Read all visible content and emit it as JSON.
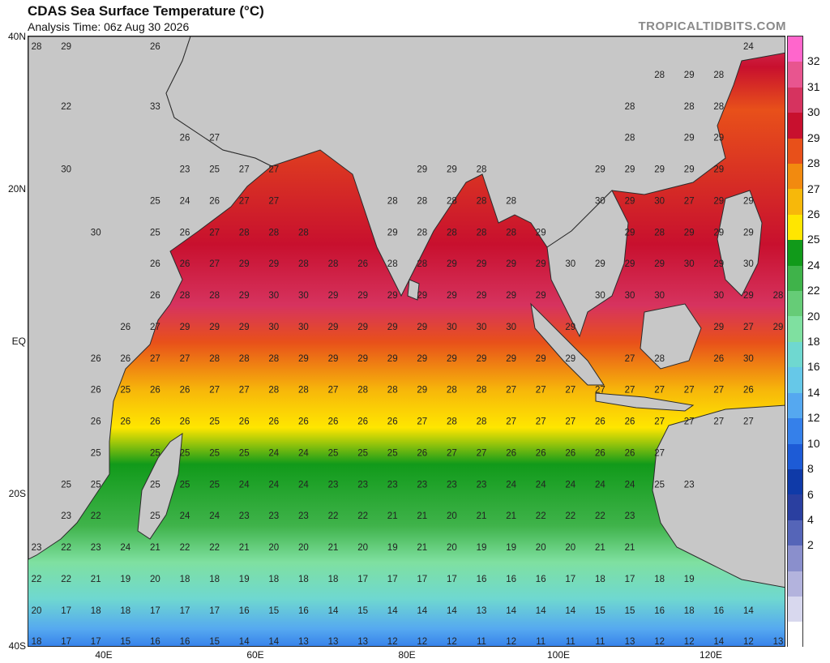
{
  "header": {
    "title": "CDAS Sea Surface Temperature (°C)",
    "subtitle": "Analysis Time: 06z Aug 30 2026",
    "site": "TROPICALTIDBITS.COM"
  },
  "axes": {
    "lat_labels": [
      "40N",
      "20N",
      "EQ",
      "20S",
      "40S"
    ],
    "lon_labels": [
      "40E",
      "60E",
      "80E",
      "100E",
      "120E"
    ]
  },
  "colorbar": {
    "ticks": [
      "32",
      "31",
      "30",
      "29",
      "28",
      "27",
      "26",
      "25",
      "24",
      "22",
      "20",
      "18",
      "16",
      "14",
      "12",
      "10",
      "8",
      "6",
      "4",
      "2"
    ],
    "colors": [
      "#ff66cc",
      "#e8558f",
      "#d6335f",
      "#c8102e",
      "#e8501a",
      "#f28a0f",
      "#f7b80a",
      "#ffe600",
      "#119a1a",
      "#3fb34a",
      "#66cc77",
      "#7fe0a0",
      "#6fd8d0",
      "#66c8e8",
      "#55a8f0",
      "#3580ea",
      "#1d5bd6",
      "#0f3aa8",
      "#2a3fa0",
      "#5565b8",
      "#8a8fcc",
      "#b3b3dd",
      "#d8d8ee",
      "#ffffff"
    ]
  },
  "map": {
    "grid": [
      {
        "y": "40N",
        "row": [
          "28",
          "29",
          "",
          "",
          "26",
          "",
          "",
          "",
          "",
          "",
          "",
          "",
          "",
          "",
          "",
          "",
          "",
          "",
          "",
          "",
          "",
          "",
          "",
          "",
          "24"
        ]
      },
      {
        "y": "35N",
        "row": [
          "",
          "",
          "",
          "",
          "",
          "",
          "",
          "",
          "",
          "",
          "",
          "",
          "",
          "",
          "",
          "",
          "",
          "",
          "",
          "",
          "",
          "28",
          "29",
          "28"
        ]
      },
      {
        "y": "30N",
        "row": [
          "",
          "22",
          "",
          "",
          "33",
          "",
          "",
          "",
          "",
          "",
          "",
          "",
          "",
          "",
          "",
          "",
          "",
          "",
          "",
          "",
          "28",
          "",
          "28",
          "28"
        ]
      },
      {
        "y": "25N",
        "row": [
          "",
          "",
          "",
          "",
          "",
          "26",
          "27",
          "",
          "",
          "",
          "",
          "",
          "",
          "",
          "",
          "",
          "",
          "",
          "",
          "",
          "28",
          "",
          "29",
          "29"
        ]
      },
      {
        "y": "20N",
        "row": [
          "",
          "30",
          "",
          "",
          "",
          "23",
          "25",
          "27",
          "27",
          "",
          "",
          "",
          "",
          "29",
          "29",
          "28",
          "",
          "",
          "",
          "29",
          "29",
          "29",
          "29",
          "29"
        ]
      },
      {
        "y": "17N",
        "row": [
          "",
          "",
          "",
          "",
          "25",
          "24",
          "26",
          "27",
          "27",
          "",
          "",
          "",
          "28",
          "28",
          "28",
          "28",
          "28",
          "",
          "",
          "30",
          "29",
          "30",
          "27",
          "29",
          "29"
        ]
      },
      {
        "y": "13N",
        "row": [
          "",
          "",
          "30",
          "",
          "25",
          "26",
          "27",
          "28",
          "28",
          "28",
          "",
          "",
          "29",
          "28",
          "28",
          "28",
          "28",
          "29",
          "",
          "",
          "29",
          "28",
          "29",
          "29",
          "29"
        ]
      },
      {
        "y": "9N",
        "row": [
          "",
          "",
          "",
          "",
          "26",
          "26",
          "27",
          "29",
          "29",
          "28",
          "28",
          "26",
          "28",
          "28",
          "29",
          "29",
          "29",
          "29",
          "30",
          "29",
          "29",
          "29",
          "30",
          "29",
          "30"
        ]
      },
      {
        "y": "5N",
        "row": [
          "",
          "",
          "",
          "",
          "26",
          "28",
          "28",
          "29",
          "30",
          "30",
          "29",
          "29",
          "29",
          "29",
          "29",
          "29",
          "29",
          "29",
          "",
          "30",
          "30",
          "30",
          "",
          "30",
          "29",
          "28"
        ]
      },
      {
        "y": "EQ",
        "row": [
          "",
          "",
          "",
          "26",
          "27",
          "29",
          "29",
          "29",
          "30",
          "30",
          "29",
          "29",
          "29",
          "29",
          "30",
          "30",
          "30",
          "",
          "29",
          "",
          "",
          "",
          "",
          "29",
          "27",
          "29"
        ]
      },
      {
        "y": "4S",
        "row": [
          "",
          "",
          "26",
          "26",
          "27",
          "27",
          "28",
          "28",
          "28",
          "29",
          "29",
          "29",
          "29",
          "29",
          "29",
          "29",
          "29",
          "29",
          "29",
          "",
          "27",
          "28",
          "",
          "26",
          "30"
        ]
      },
      {
        "y": "8S",
        "row": [
          "",
          "",
          "26",
          "25",
          "26",
          "26",
          "27",
          "27",
          "28",
          "28",
          "27",
          "28",
          "28",
          "29",
          "28",
          "28",
          "27",
          "27",
          "27",
          "27",
          "27",
          "27",
          "27",
          "27",
          "26"
        ]
      },
      {
        "y": "12S",
        "row": [
          "",
          "",
          "26",
          "26",
          "26",
          "26",
          "25",
          "26",
          "26",
          "26",
          "26",
          "26",
          "26",
          "27",
          "28",
          "28",
          "27",
          "27",
          "27",
          "26",
          "26",
          "27",
          "27",
          "27",
          "27"
        ]
      },
      {
        "y": "16S",
        "row": [
          "",
          "",
          "25",
          "",
          "25",
          "25",
          "25",
          "25",
          "24",
          "24",
          "25",
          "25",
          "25",
          "26",
          "27",
          "27",
          "26",
          "26",
          "26",
          "26",
          "26",
          "27"
        ]
      },
      {
        "y": "20S",
        "row": [
          "",
          "25",
          "25",
          "",
          "25",
          "25",
          "25",
          "24",
          "24",
          "24",
          "23",
          "23",
          "23",
          "23",
          "23",
          "23",
          "24",
          "24",
          "24",
          "24",
          "24",
          "25",
          "23"
        ]
      },
      {
        "y": "24S",
        "row": [
          "",
          "23",
          "22",
          "",
          "25",
          "24",
          "24",
          "23",
          "23",
          "23",
          "22",
          "22",
          "21",
          "21",
          "20",
          "21",
          "21",
          "22",
          "22",
          "22",
          "23"
        ]
      },
      {
        "y": "28S",
        "row": [
          "23",
          "22",
          "23",
          "24",
          "21",
          "22",
          "22",
          "21",
          "20",
          "20",
          "21",
          "20",
          "19",
          "21",
          "20",
          "19",
          "19",
          "20",
          "20",
          "21",
          "21"
        ]
      },
      {
        "y": "32S",
        "row": [
          "22",
          "22",
          "21",
          "19",
          "20",
          "18",
          "18",
          "19",
          "18",
          "18",
          "18",
          "17",
          "17",
          "17",
          "17",
          "16",
          "16",
          "16",
          "17",
          "18",
          "17",
          "18",
          "19"
        ]
      },
      {
        "y": "36S",
        "row": [
          "20",
          "17",
          "18",
          "18",
          "17",
          "17",
          "17",
          "16",
          "15",
          "16",
          "14",
          "15",
          "14",
          "14",
          "14",
          "13",
          "14",
          "14",
          "14",
          "15",
          "15",
          "16",
          "18",
          "16",
          "14"
        ]
      },
      {
        "y": "40S",
        "row": [
          "18",
          "17",
          "17",
          "15",
          "16",
          "16",
          "15",
          "14",
          "14",
          "13",
          "13",
          "13",
          "12",
          "12",
          "12",
          "11",
          "12",
          "11",
          "11",
          "11",
          "13",
          "12",
          "12",
          "14",
          "12",
          "13"
        ]
      }
    ],
    "landmass_color": "#c7c7c7",
    "border_color": "#2b2b2b"
  }
}
